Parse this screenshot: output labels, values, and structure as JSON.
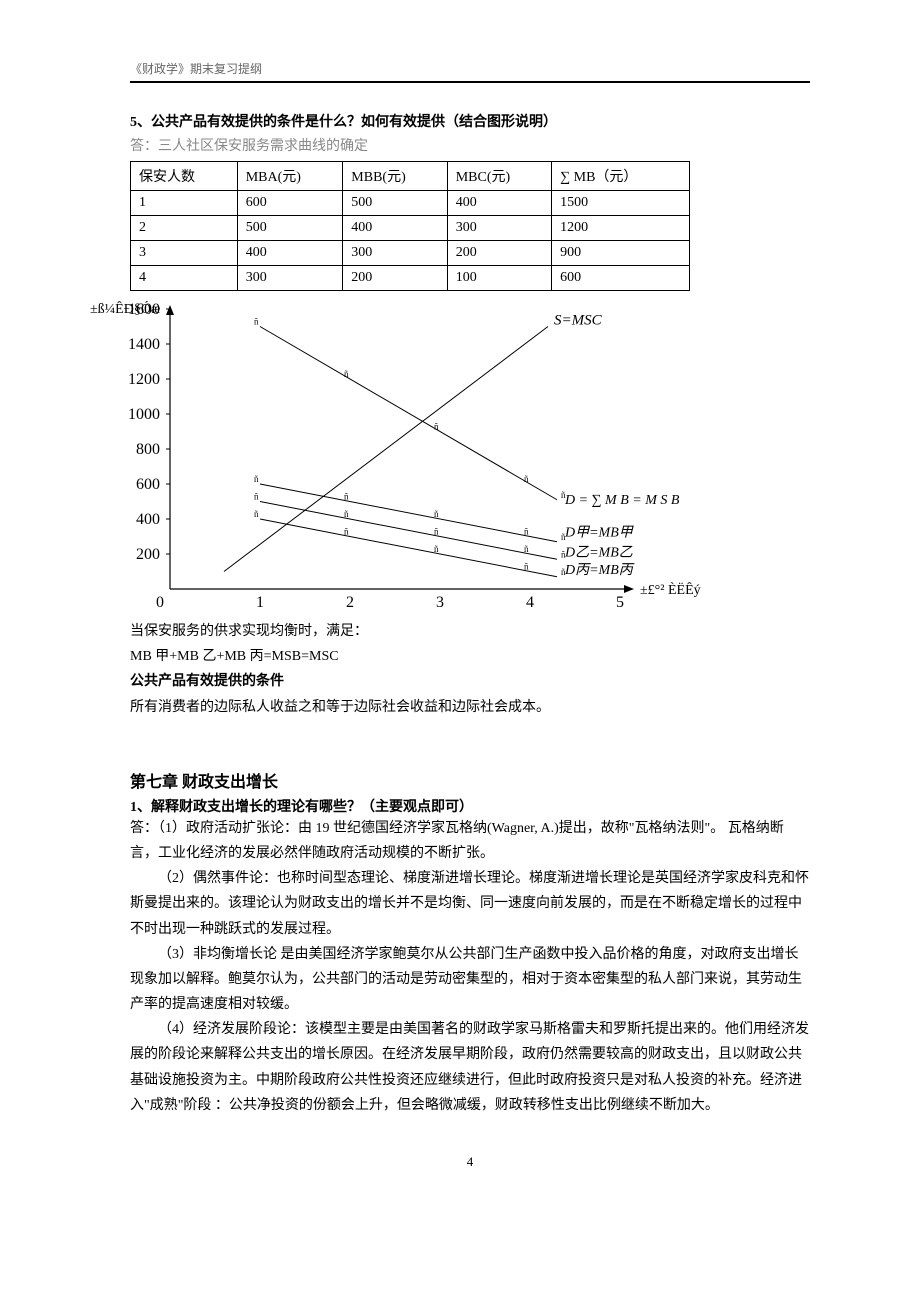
{
  "header": "《财政学》期末复习提纲",
  "q5": {
    "title": "5、公共产品有效提供的条件是什么？如何有效提供（结合图形说明）",
    "answerIntro": "答：三人社区保安服务需求曲线的确定",
    "table": {
      "headers": [
        "保安人数",
        "MBA(元)",
        "MBB(元)",
        "MBC(元)",
        "∑ MB（元）"
      ],
      "rows": [
        [
          "1",
          "600",
          "500",
          "400",
          "1500"
        ],
        [
          "2",
          "500",
          "400",
          "300",
          "1200"
        ],
        [
          "3",
          "400",
          "300",
          "200",
          "900"
        ],
        [
          "4",
          "300",
          "200",
          "100",
          "600"
        ]
      ]
    },
    "chart": {
      "type": "line",
      "yLabel": "±ß¼ÊÐ§Óæ",
      "xLabel": "±£°² ÈËÊý",
      "xlim": [
        0,
        5
      ],
      "ylim": [
        0,
        1600
      ],
      "ytick_step": 200,
      "xtick_step": 1,
      "lines": {
        "D_total": {
          "points": [
            [
              1,
              1500
            ],
            [
              4,
              600
            ]
          ],
          "label": "D = ∑ MB = MSB"
        },
        "D_jia": {
          "points": [
            [
              1,
              600
            ],
            [
              4,
              300
            ]
          ],
          "label": "D甲=MB甲"
        },
        "D_yi": {
          "points": [
            [
              1,
              500
            ],
            [
              4,
              200
            ]
          ],
          "label": "D乙=MB乙"
        },
        "D_bing": {
          "points": [
            [
              1,
              400
            ],
            [
              4,
              100
            ]
          ],
          "label": "D丙=MB丙"
        },
        "S": {
          "points": [
            [
              0.6,
              100
            ],
            [
              4.2,
              1500
            ]
          ],
          "label": "S=MSC"
        }
      },
      "colors": {
        "axis": "#000000",
        "line": "#000000",
        "bg": "#ffffff"
      }
    },
    "eqnLines": [
      "当保安服务的供求实现均衡时，满足：",
      "MB 甲+MB 乙+MB 丙=MSB=MSC"
    ],
    "conditionTitle": "公共产品有效提供的条件",
    "conditionBody": "所有消费者的边际私人收益之和等于边际社会收益和边际社会成本。"
  },
  "ch7": {
    "title": "第七章 财政支出增长",
    "q1": "1、解释财政支出增长的理论有哪些？（主要观点即可）",
    "answerPrefix": "答：",
    "paras": [
      "（1）政府活动扩张论：由 19 世纪德国经济学家瓦格纳(Wagner, A.)提出，故称\"瓦格纳法则\"。 瓦格纳断言，工业化经济的发展必然伴随政府活动规模的不断扩张。",
      "（2）偶然事件论：也称时间型态理论、梯度渐进增长理论。梯度渐进增长理论是英国经济学家皮科克和怀斯曼提出来的。该理论认为财政支出的增长并不是均衡、同一速度向前发展的，而是在不断稳定增长的过程中不时出现一种跳跃式的发展过程。",
      "（3）非均衡增长论 是由美国经济学家鲍莫尔从公共部门生产函数中投入品价格的角度，对政府支出增长现象加以解释。鲍莫尔认为，公共部门的活动是劳动密集型的，相对于资本密集型的私人部门来说，其劳动生产率的提高速度相对较缓。",
      "（4）经济发展阶段论：该模型主要是由美国著名的财政学家马斯格雷夫和罗斯托提出来的。他们用经济发展的阶段论来解释公共支出的增长原因。在经济发展早期阶段，政府仍然需要较高的财政支出，且以财政公共基础设施投资为主。中期阶段政府公共性投资还应继续进行，但此时政府投资只是对私人投资的补充。经济进入\"成熟\"阶段 ：公共净投资的份额会上升，但会略微减缓，财政转移性支出比例继续不断加大。"
    ]
  },
  "pageNum": "4"
}
